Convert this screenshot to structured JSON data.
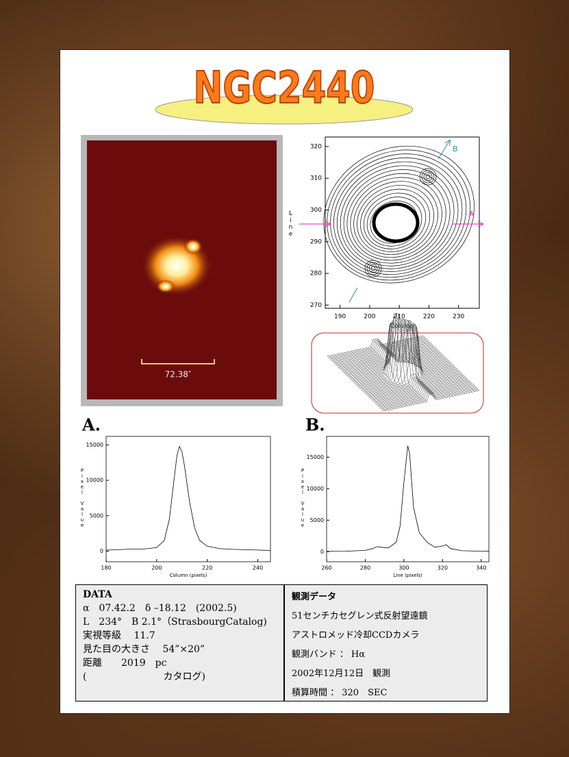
{
  "title": "NGC2440",
  "image": {
    "scale_label": "72.38″"
  },
  "contour": {
    "xlabel": "Column",
    "ylabel": "Line",
    "xlim": [
      185,
      237
    ],
    "ylim": [
      269,
      323
    ],
    "xticks": [
      190,
      200,
      210,
      220,
      230
    ],
    "yticks": [
      270,
      280,
      290,
      300,
      310,
      320
    ],
    "marker_a": "A",
    "marker_b": "B"
  },
  "plots": [
    {
      "label": "A.",
      "type": "line",
      "xlabel": "Column (pixels)",
      "ylabel": "Pixel Value",
      "xlim": [
        180,
        245
      ],
      "ylim": [
        -1500,
        16200
      ],
      "xticks": [
        180,
        200,
        220,
        240
      ],
      "yticks": [
        0,
        5000,
        10000,
        15000
      ],
      "x": [
        180,
        185,
        190,
        195,
        200,
        203,
        205,
        207,
        208,
        209,
        210,
        211,
        213,
        215,
        217,
        220,
        225,
        230,
        235,
        240,
        245
      ],
      "values": [
        150,
        200,
        300,
        300,
        500,
        1500,
        4500,
        10500,
        13500,
        14800,
        14000,
        12000,
        7000,
        3300,
        1500,
        700,
        350,
        250,
        200,
        150,
        100
      ]
    },
    {
      "label": "B.",
      "type": "line",
      "xlabel": "Line (pixels)",
      "ylabel": "Pixel Value",
      "xlim": [
        260,
        344
      ],
      "ylim": [
        -1600,
        18300
      ],
      "xticks": [
        260,
        280,
        300,
        320,
        340
      ],
      "yticks": [
        0,
        5000,
        10000,
        15000
      ],
      "x": [
        260,
        270,
        280,
        284,
        286,
        288,
        292,
        296,
        298,
        300,
        302,
        303,
        305,
        308,
        312,
        316,
        320,
        322,
        324,
        330,
        340,
        344
      ],
      "values": [
        50,
        80,
        200,
        500,
        800,
        700,
        600,
        1500,
        4000,
        11000,
        16800,
        15500,
        7000,
        3000,
        1500,
        700,
        900,
        1100,
        500,
        150,
        80,
        60
      ]
    }
  ],
  "data_table": {
    "left": [
      "DATA",
      "α　07.42.2　δ –18.12　(2002.5)",
      "L　234°　B 2.1°（StrasbourgCatalog)",
      "実視等級　 11.7",
      "見た目の大きさ　 54”×20”",
      "距離　　2019　pc",
      "(　　　　　　　　カタログ)"
    ],
    "right": [
      "観測データ",
      "51センチカセグレン式反射望遠鏡",
      "アストロメッド冷却CCDカメラ",
      "観測バンド ： Hα",
      "2002年12月12日　観測",
      "積算時間 ： 320　SEC"
    ]
  }
}
